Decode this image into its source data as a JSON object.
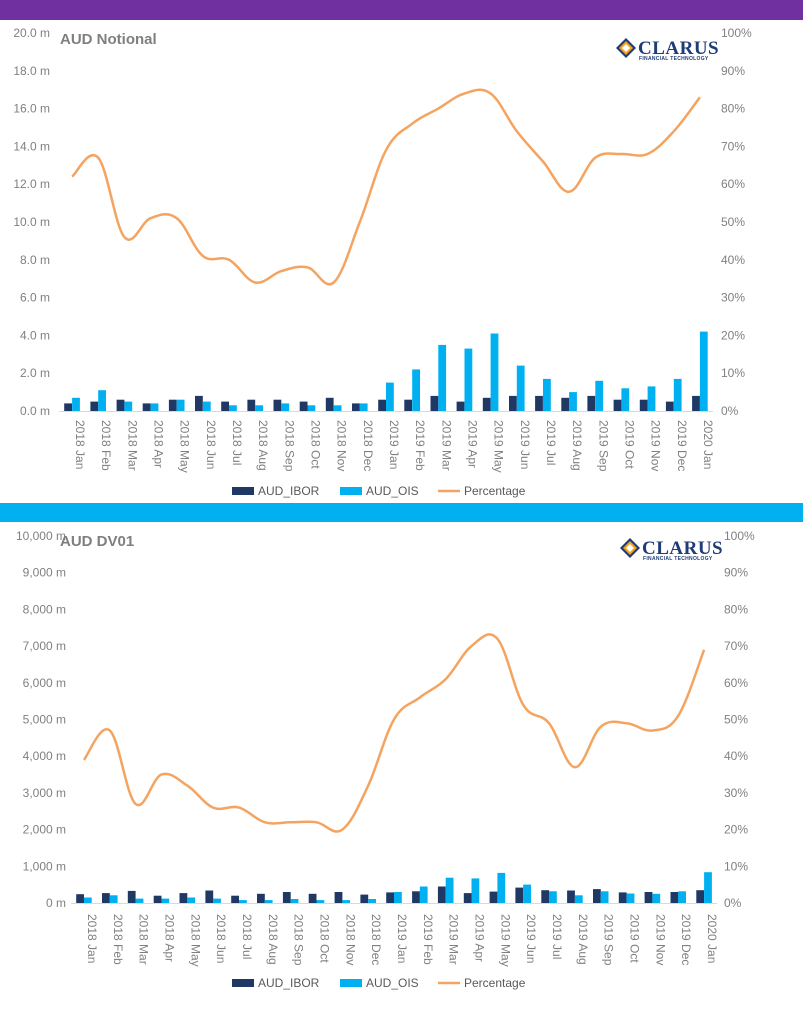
{
  "colors": {
    "top_band": "#7030a0",
    "mid_band": "#00b0f0",
    "ibor": "#1f3864",
    "ois": "#00b0f0",
    "percentage": "#f4a460",
    "axis_text": "#808080",
    "logo_blue": "#1f3c78",
    "logo_orange": "#f7a21b"
  },
  "logo": {
    "name": "CLARUS",
    "tagline": "FINANCIAL TECHNOLOGY",
    "icon": "clarus-diamond-icon"
  },
  "legend": {
    "ibor": "AUD_IBOR",
    "ois": "AUD_OIS",
    "percentage": "Percentage"
  },
  "chart_data": [
    {
      "type": "bar",
      "title": "AUD Notional",
      "categories": [
        "2018 Jan",
        "2018 Feb",
        "2018 Mar",
        "2018 Apr",
        "2018 May",
        "2018 Jun",
        "2018 Jul",
        "2018 Aug",
        "2018 Sep",
        "2018 Oct",
        "2018 Nov",
        "2018 Dec",
        "2019 Jan",
        "2019 Feb",
        "2019 Mar",
        "2019 Apr",
        "2019 May",
        "2019 Jun",
        "2019 Jul",
        "2019 Aug",
        "2019 Sep",
        "2019 Oct",
        "2019 Nov",
        "2019 Dec",
        "2020 Jan"
      ],
      "y_ticks": [
        "0.0 m",
        "2.0 m",
        "4.0 m",
        "6.0 m",
        "8.0 m",
        "10.0 m",
        "12.0 m",
        "14.0 m",
        "16.0 m",
        "18.0 m",
        "20.0 m"
      ],
      "y2_ticks": [
        "0%",
        "10%",
        "20%",
        "30%",
        "40%",
        "50%",
        "60%",
        "70%",
        "80%",
        "90%",
        "100%"
      ],
      "ylim": [
        0,
        20
      ],
      "y2lim": [
        0,
        100
      ],
      "series": [
        {
          "name": "AUD_IBOR",
          "type": "bar",
          "axis": "left",
          "values": [
            0.4,
            0.5,
            0.6,
            0.4,
            0.6,
            0.8,
            0.5,
            0.6,
            0.6,
            0.5,
            0.7,
            0.4,
            0.6,
            0.6,
            0.8,
            0.5,
            0.7,
            0.8,
            0.8,
            0.7,
            0.8,
            0.6,
            0.6,
            0.5,
            0.8
          ]
        },
        {
          "name": "AUD_OIS",
          "type": "bar",
          "axis": "left",
          "values": [
            0.7,
            1.1,
            0.5,
            0.4,
            0.6,
            0.5,
            0.3,
            0.3,
            0.4,
            0.3,
            0.3,
            0.4,
            1.5,
            2.2,
            3.5,
            3.3,
            4.1,
            2.4,
            1.7,
            1.0,
            1.6,
            1.2,
            1.3,
            1.7,
            4.2
          ]
        },
        {
          "name": "Percentage",
          "type": "line",
          "axis": "right",
          "values": [
            62,
            67,
            46,
            51,
            51,
            41,
            40,
            34,
            37,
            38,
            34,
            50,
            69,
            76,
            80,
            84,
            84,
            74,
            66,
            58,
            67,
            68,
            68,
            74,
            83
          ]
        }
      ],
      "legend_position": "bottom",
      "grid": false
    },
    {
      "type": "bar",
      "title": "AUD DV01",
      "categories": [
        "2018 Jan",
        "2018 Feb",
        "2018 Mar",
        "2018 Apr",
        "2018 May",
        "2018 Jun",
        "2018 Jul",
        "2018 Aug",
        "2018 Sep",
        "2018 Oct",
        "2018 Nov",
        "2018 Dec",
        "2019 Jan",
        "2019 Feb",
        "2019 Mar",
        "2019 Apr",
        "2019 May",
        "2019 Jun",
        "2019 Jul",
        "2019 Aug",
        "2019 Sep",
        "2019 Oct",
        "2019 Nov",
        "2019 Dec",
        "2020 Jan"
      ],
      "y_ticks": [
        "0 m",
        "1,000 m",
        "2,000 m",
        "3,000 m",
        "4,000 m",
        "5,000 m",
        "6,000 m",
        "7,000 m",
        "8,000 m",
        "9,000 m",
        "10,000 m"
      ],
      "y2_ticks": [
        "0%",
        "10%",
        "20%",
        "30%",
        "40%",
        "50%",
        "60%",
        "70%",
        "80%",
        "90%",
        "100%"
      ],
      "ylim": [
        0,
        10000
      ],
      "y2lim": [
        0,
        100
      ],
      "series": [
        {
          "name": "AUD_IBOR",
          "type": "bar",
          "axis": "left",
          "values": [
            240,
            270,
            330,
            200,
            270,
            340,
            200,
            250,
            300,
            250,
            300,
            230,
            290,
            320,
            450,
            270,
            310,
            420,
            350,
            340,
            380,
            290,
            300,
            300,
            350
          ]
        },
        {
          "name": "AUD_OIS",
          "type": "bar",
          "axis": "left",
          "values": [
            150,
            210,
            120,
            120,
            150,
            120,
            80,
            80,
            110,
            80,
            80,
            110,
            300,
            450,
            690,
            670,
            820,
            500,
            320,
            210,
            320,
            260,
            250,
            320,
            840
          ]
        },
        {
          "name": "Percentage",
          "type": "line",
          "axis": "right",
          "values": [
            39,
            47,
            27,
            35,
            32,
            26,
            26,
            22,
            22,
            22,
            20,
            32,
            50,
            56,
            61,
            70,
            72,
            54,
            49,
            37,
            48,
            49,
            47,
            51,
            69
          ]
        }
      ],
      "legend_position": "bottom",
      "grid": false
    }
  ]
}
